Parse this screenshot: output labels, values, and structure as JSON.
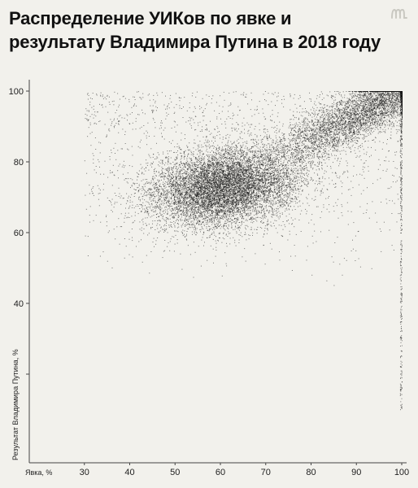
{
  "title": "Распределение УИКов по явке и результату Владимира Путина в 2018 году",
  "colors": {
    "background": "#f2f1ec",
    "points": "#111111",
    "axis": "#444444",
    "logo": "#c9c8c1"
  },
  "logo_icon": "meduza-logo-icon",
  "chart_data": {
    "type": "scatter",
    "title": "Распределение УИКов по явке и результату Владимира Путина в 2018 году",
    "xlabel": "Явка, %",
    "ylabel": "Результат Владимира Путина, %",
    "xlim": [
      20,
      100
    ],
    "ylim": [
      0,
      100
    ],
    "xticks": [
      30,
      40,
      50,
      60,
      70,
      80,
      90,
      100
    ],
    "yticks": [
      20,
      40,
      60,
      80,
      100
    ],
    "ytick_labels_shown": [
      40,
      60,
      80,
      100
    ],
    "grid": false,
    "legend": "none",
    "distribution": {
      "main_cluster_center": [
        61,
        73
      ],
      "main_cluster_spread": [
        8,
        5.5
      ],
      "secondary_band": "dense points along the line from (70, 80) to (100, 100), most concentrated at turnout 90–100% and result 90–100%",
      "vertical_streak": "sparse points at turnout 100% extending from result 100% down to about 10%"
    }
  }
}
